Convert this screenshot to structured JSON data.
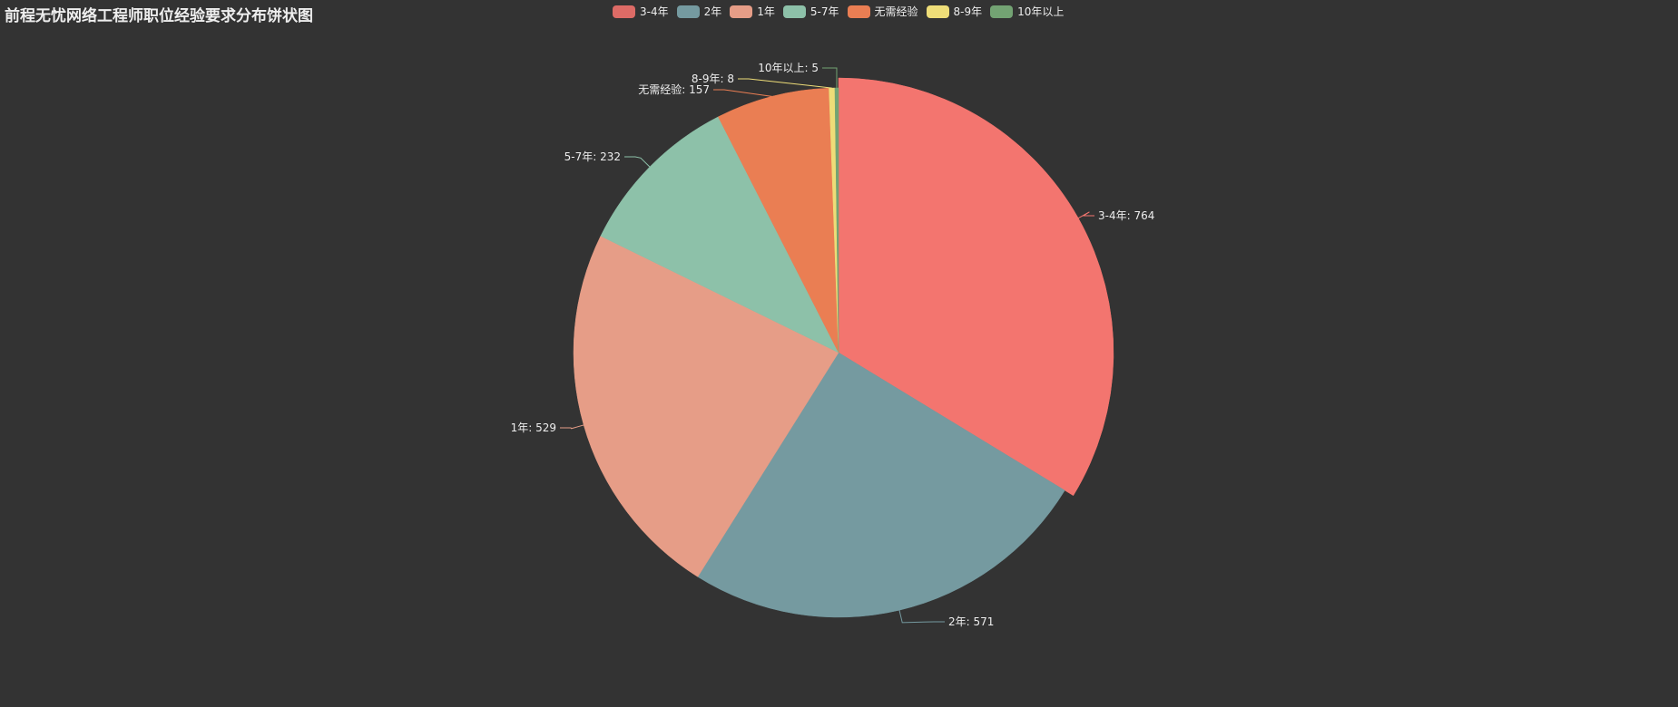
{
  "chart_data": {
    "type": "pie",
    "title": "前程无忧网络工程师职位经验要求分布饼状图",
    "legend_position": "top",
    "categories": [
      "3-4年",
      "2年",
      "1年",
      "5-7年",
      "无需经验",
      "8-9年",
      "10年以上"
    ],
    "values": [
      764,
      571,
      529,
      232,
      157,
      8,
      5
    ],
    "labels": [
      "3-4年: 764",
      "2年: 571",
      "1年: 529",
      "5-7年: 232",
      "无需经验: 157",
      "8-9年: 8",
      "10年以上: 5"
    ],
    "colors": [
      "#dd6b66",
      "#759aa0",
      "#e69d87",
      "#8dc1a9",
      "#ea7e53",
      "#eedd78",
      "#73a373"
    ],
    "highlighted": "3-4年",
    "highlight_color": "#f3756f"
  }
}
